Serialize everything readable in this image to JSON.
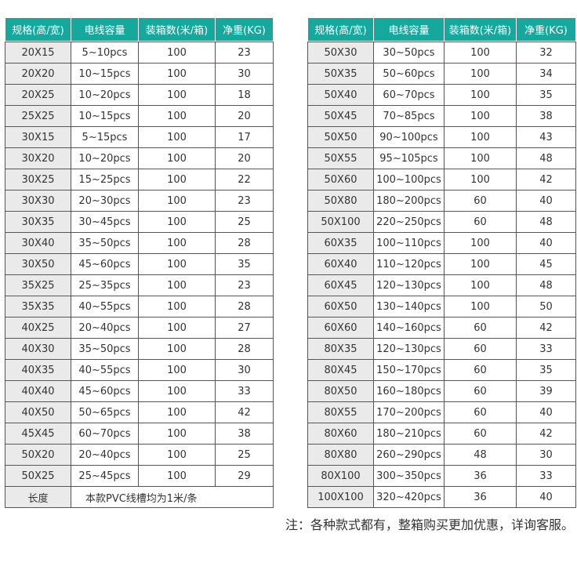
{
  "left_table": {
    "headers": [
      "规格(高/宽)",
      "电线容量",
      "装箱数(米/箱)",
      "净重(KG)"
    ],
    "rows": [
      [
        "20X15",
        "5~10pcs",
        100,
        23
      ],
      [
        "20X20",
        "10~15pcs",
        100,
        30
      ],
      [
        "20X25",
        "10~20pcs",
        100,
        18
      ],
      [
        "25X25",
        "10~15pcs",
        100,
        20
      ],
      [
        "30X15",
        "5~15pcs",
        100,
        17
      ],
      [
        "30X20",
        "10~20pcs",
        100,
        20
      ],
      [
        "30X25",
        "15~25pcs",
        100,
        22
      ],
      [
        "30X30",
        "20~30pcs",
        100,
        23
      ],
      [
        "30X35",
        "30~45pcs",
        100,
        25
      ],
      [
        "30X40",
        "35~50pcs",
        100,
        28
      ],
      [
        "30X50",
        "45~60pcs",
        100,
        35
      ],
      [
        "35X25",
        "25~35pcs",
        100,
        23
      ],
      [
        "35X35",
        "40~55pcs",
        100,
        28
      ],
      [
        "40X25",
        "20~40pcs",
        100,
        27
      ],
      [
        "40X30",
        "35~50pcs",
        100,
        28
      ],
      [
        "40X35",
        "40~55pcs",
        100,
        30
      ],
      [
        "40X40",
        "45~60pcs",
        100,
        33
      ],
      [
        "40X50",
        "50~65pcs",
        100,
        42
      ],
      [
        "45X45",
        "60~70pcs",
        100,
        38
      ],
      [
        "50X20",
        "20~40pcs",
        100,
        25
      ],
      [
        "50X25",
        "25~45pcs",
        100,
        29
      ]
    ],
    "footer": [
      "长度",
      "本款PVC线槽均为1米/条"
    ]
  },
  "right_table": {
    "headers": [
      "规格(高/宽)",
      "电线容量",
      "装箱数(米/箱)",
      "净重(KG)"
    ],
    "rows": [
      [
        "50X30",
        "30~50pcs",
        100,
        32
      ],
      [
        "50X35",
        "50~60pcs",
        100,
        34
      ],
      [
        "50X40",
        "60~70pcs",
        100,
        35
      ],
      [
        "50X45",
        "70~85pcs",
        100,
        38
      ],
      [
        "50X50",
        "90~100pcs",
        100,
        43
      ],
      [
        "50X55",
        "95~105pcs",
        100,
        48
      ],
      [
        "50X60",
        "100~100pcs",
        100,
        42
      ],
      [
        "50X80",
        "180~200pcs",
        60,
        40
      ],
      [
        "50X100",
        "220~250pcs",
        60,
        48
      ],
      [
        "60X35",
        "100~110pcs",
        100,
        40
      ],
      [
        "60X40",
        "110~120pcs",
        100,
        45
      ],
      [
        "60X45",
        "120~130pcs",
        100,
        48
      ],
      [
        "60X50",
        "130~140pcs",
        100,
        50
      ],
      [
        "60X60",
        "140~160pcs",
        60,
        42
      ],
      [
        "80X35",
        "120~130pcs",
        60,
        33
      ],
      [
        "80X45",
        "150~170pcs",
        60,
        35
      ],
      [
        "80X50",
        "160~180pcs",
        60,
        39
      ],
      [
        "80X55",
        "170~200pcs",
        60,
        40
      ],
      [
        "80X60",
        "180~210pcs",
        60,
        42
      ],
      [
        "80X80",
        "260~290pcs",
        48,
        30
      ],
      [
        "80X100",
        "300~350pcs",
        36,
        33
      ],
      [
        "100X100",
        "320~420pcs",
        36,
        40
      ]
    ]
  },
  "note": "注：各种款式都有，整箱购买更加优惠，详询客服。"
}
